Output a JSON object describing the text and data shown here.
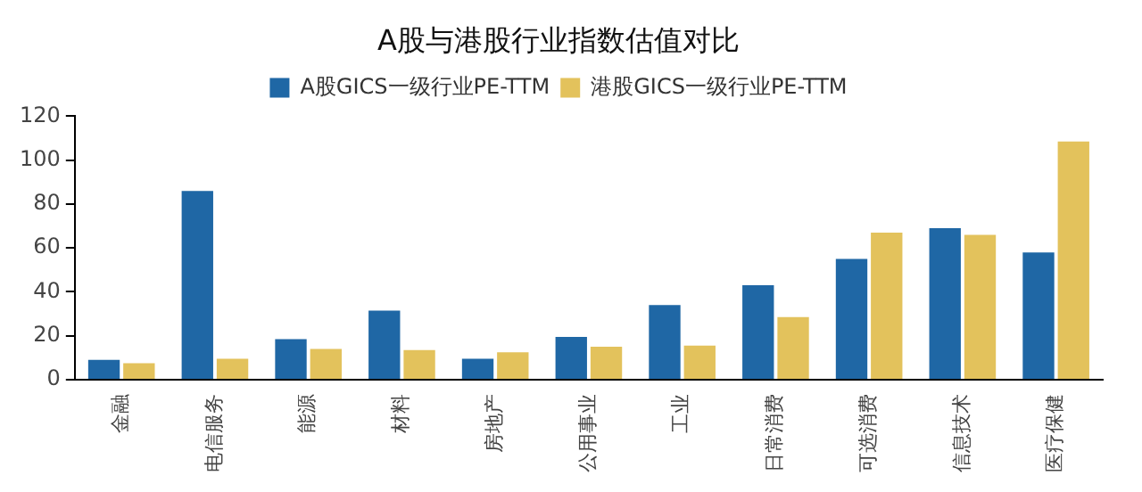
{
  "chart_data": {
    "type": "bar",
    "title": "A股与港股行业指数估值对比",
    "categories": [
      "金融",
      "电信服务",
      "能源",
      "材料",
      "房地产",
      "公用事业",
      "工业",
      "日常消费",
      "可选消费",
      "信息技术",
      "医疗保健"
    ],
    "series": [
      {
        "name": "A股GICS一级行业PE-TTM",
        "color": "#1f67a5",
        "values": [
          9,
          86,
          18.5,
          31.5,
          9.5,
          19.5,
          34,
          43,
          55,
          69,
          58
        ]
      },
      {
        "name": "港股GICS一级行业PE-TTM",
        "color": "#e3c25c",
        "values": [
          7.5,
          9.5,
          14,
          13.5,
          12.5,
          15,
          15.5,
          28.5,
          67,
          66,
          108.5
        ]
      }
    ],
    "ylim": [
      0,
      120
    ],
    "yticks": [
      0,
      20,
      40,
      60,
      80,
      100,
      120
    ],
    "grid": false,
    "legend": "top"
  }
}
